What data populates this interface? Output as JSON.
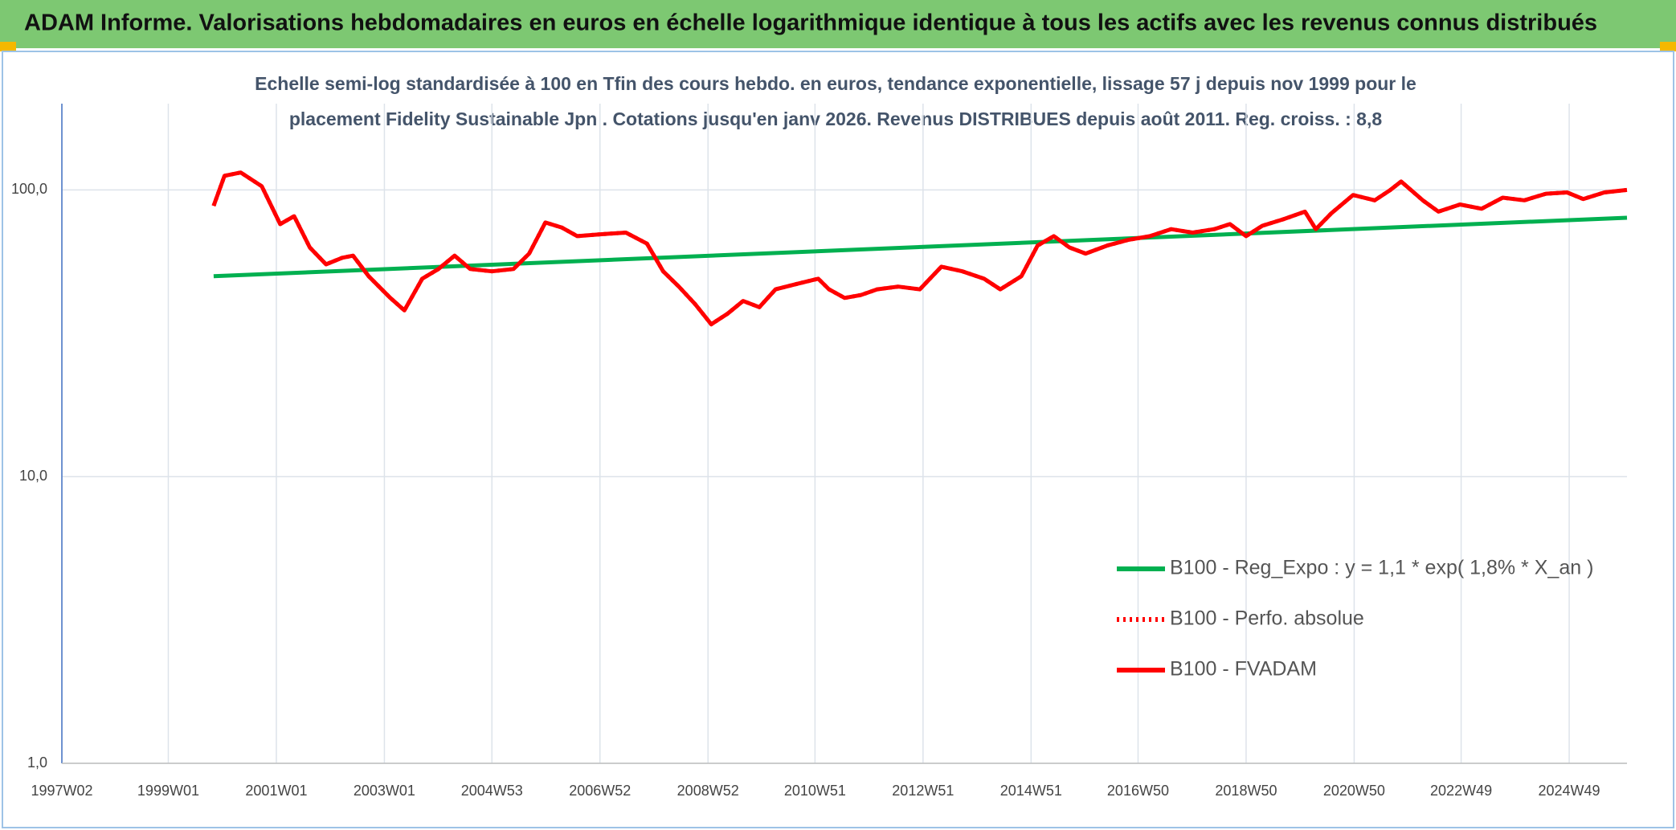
{
  "header": {
    "title": "ADAM Informe. Valorisations hebdomadaires en euros en échelle logarithmique identique à tous les actifs avec les revenus connus distribués"
  },
  "chart_data": {
    "type": "line",
    "title": "Echelle semi-log standardisée à 100 en Tfin des cours hebdo. en euros, tendance exponentielle, lissage 57 j depuis nov 1999 pour le",
    "subtitle": "placement Fidelity Sustainable Jpn . Cotations jusqu'en janv 2026. Revenus DISTRIBUES depuis août 2011. Reg. croiss. : 8,8",
    "log_scale": true,
    "grid": true,
    "legend": "right",
    "xlim": [
      1997.03,
      2026.0
    ],
    "xticks": [
      {
        "value": 1997.03,
        "label": "1997W02"
      },
      {
        "value": 1999.0,
        "label": "1999W01"
      },
      {
        "value": 2001.0,
        "label": "2001W01"
      },
      {
        "value": 2003.0,
        "label": "2003W01"
      },
      {
        "value": 2004.99,
        "label": "2004W53"
      },
      {
        "value": 2006.99,
        "label": "2006W52"
      },
      {
        "value": 2008.99,
        "label": "2008W52"
      },
      {
        "value": 2010.97,
        "label": "2010W51"
      },
      {
        "value": 2012.97,
        "label": "2012W51"
      },
      {
        "value": 2014.97,
        "label": "2014W51"
      },
      {
        "value": 2016.95,
        "label": "2016W50"
      },
      {
        "value": 2018.95,
        "label": "2018W50"
      },
      {
        "value": 2020.95,
        "label": "2020W50"
      },
      {
        "value": 2022.93,
        "label": "2022W49"
      },
      {
        "value": 2024.93,
        "label": "2024W49"
      }
    ],
    "ylim": [
      1,
      200
    ],
    "yticks": [
      {
        "value": 1,
        "label": "1,0"
      },
      {
        "value": 10,
        "label": "10,0"
      },
      {
        "value": 100,
        "label": "100,0"
      }
    ],
    "series": [
      {
        "name": "B100 - Reg_Expo : y = 1,1 * exp( 1,8% *  X_an )",
        "color": "#00b050",
        "dash": "solid",
        "x": [
          1999.84,
          2026.0
        ],
        "values": [
          50,
          80
        ]
      },
      {
        "name": "B100 - Perfo. absolue",
        "color": "#ff0000",
        "dash": "dotted",
        "x": [
          1999.84,
          2000.04,
          2000.34,
          2000.73,
          2001.07,
          2001.33,
          2001.62,
          2001.92,
          2002.22,
          2002.42,
          2002.71,
          2003.11,
          2003.37,
          2003.7,
          2004.0,
          2004.3,
          2004.59,
          2004.99,
          2005.39,
          2005.68,
          2005.98,
          2006.28,
          2006.57,
          2006.97,
          2007.47,
          2007.86,
          2008.16,
          2008.45,
          2008.75,
          2009.05,
          2009.35,
          2009.64,
          2009.94,
          2010.24,
          2010.63,
          2011.03,
          2011.23,
          2011.52,
          2011.82,
          2012.12,
          2012.51,
          2012.91,
          2013.31,
          2013.7,
          2014.1,
          2014.4,
          2014.79,
          2015.09,
          2015.39,
          2015.68,
          2015.98,
          2016.38,
          2016.77,
          2017.17,
          2017.56,
          2017.96,
          2018.36,
          2018.65,
          2018.95,
          2019.25,
          2019.64,
          2020.04,
          2020.24,
          2020.53,
          2020.93,
          2021.33,
          2021.62,
          2021.82,
          2022.22,
          2022.51,
          2022.91,
          2023.31,
          2023.7,
          2024.1,
          2024.5,
          2024.89,
          2025.19,
          2025.58,
          2026.0
        ],
        "values": [
          88,
          112,
          115,
          103,
          76,
          81,
          63,
          55,
          58,
          59,
          50,
          42,
          38,
          49,
          53,
          59,
          53,
          52,
          53,
          60,
          77,
          74,
          69,
          70,
          71,
          65,
          52,
          46,
          40,
          34,
          37,
          41,
          39,
          45,
          47,
          49,
          45,
          42,
          43,
          45,
          46,
          45,
          54,
          52,
          49,
          45,
          50,
          64,
          69,
          63,
          60,
          64,
          67,
          69,
          73,
          71,
          73,
          76,
          69,
          75,
          79,
          84,
          73,
          83,
          96,
          92,
          100,
          107,
          92,
          84,
          89,
          86,
          94,
          92,
          97,
          98,
          93,
          98,
          100
        ]
      },
      {
        "name": "B100 - FVADAM",
        "color": "#ff0000",
        "dash": "solid",
        "x": [
          1999.84,
          2000.04,
          2000.34,
          2000.73,
          2001.07,
          2001.33,
          2001.62,
          2001.92,
          2002.22,
          2002.42,
          2002.71,
          2003.11,
          2003.37,
          2003.7,
          2004.0,
          2004.3,
          2004.59,
          2004.99,
          2005.39,
          2005.68,
          2005.98,
          2006.28,
          2006.57,
          2006.97,
          2007.47,
          2007.86,
          2008.16,
          2008.45,
          2008.75,
          2009.05,
          2009.35,
          2009.64,
          2009.94,
          2010.24,
          2010.63,
          2011.03,
          2011.23,
          2011.52,
          2011.82,
          2012.12,
          2012.51,
          2012.91,
          2013.31,
          2013.7,
          2014.1,
          2014.4,
          2014.79,
          2015.09,
          2015.39,
          2015.68,
          2015.98,
          2016.38,
          2016.77,
          2017.17,
          2017.56,
          2017.96,
          2018.36,
          2018.65,
          2018.95,
          2019.25,
          2019.64,
          2020.04,
          2020.24,
          2020.53,
          2020.93,
          2021.33,
          2021.62,
          2021.82,
          2022.22,
          2022.51,
          2022.91,
          2023.31,
          2023.7,
          2024.1,
          2024.5,
          2024.89,
          2025.19,
          2025.58,
          2026.0
        ],
        "values": [
          88,
          112,
          115,
          103,
          76,
          81,
          63,
          55,
          58,
          59,
          50,
          42,
          38,
          49,
          53,
          59,
          53,
          52,
          53,
          60,
          77,
          74,
          69,
          70,
          71,
          65,
          52,
          46,
          40,
          34,
          37,
          41,
          39,
          45,
          47,
          49,
          45,
          42,
          43,
          45,
          46,
          45,
          54,
          52,
          49,
          45,
          50,
          64,
          69,
          63,
          60,
          64,
          67,
          69,
          73,
          71,
          73,
          76,
          69,
          75,
          79,
          84,
          73,
          83,
          96,
          92,
          100,
          107,
          92,
          84,
          89,
          86,
          94,
          92,
          97,
          98,
          93,
          98,
          100
        ]
      }
    ]
  }
}
